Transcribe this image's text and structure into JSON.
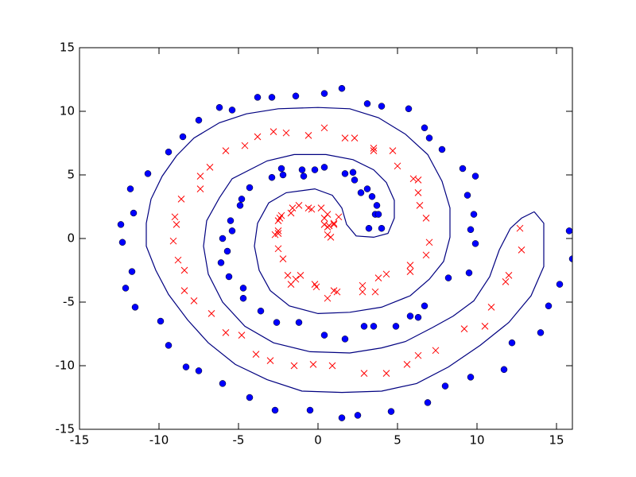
{
  "chart_data": {
    "type": "scatter",
    "xlim": [
      -15,
      16
    ],
    "ylim": [
      -15,
      15
    ],
    "xticks": [
      -15,
      -10,
      -5,
      0,
      5,
      10,
      15
    ],
    "yticks": [
      -15,
      -10,
      -5,
      0,
      5,
      10,
      15
    ],
    "series": [
      {
        "color": "#0000ff",
        "marker": "o",
        "x": [
          1.5,
          0.4,
          -1.4,
          -2.9,
          -3.8,
          -6.2,
          -5.4,
          3.1,
          4.0,
          5.7,
          -7.5,
          6.7,
          7.0,
          -8.5,
          7.8,
          -9.4,
          9.1,
          9.9,
          -10.7,
          -11.8,
          9.4,
          -11.6,
          9.8,
          -12.4,
          9.6,
          -12.3,
          9.9,
          -11.7,
          9.5,
          -12.1,
          -11.5,
          8.2,
          -9.9,
          6.7,
          -9.4,
          5.8,
          6.3,
          4.9,
          -8.3,
          -7.5,
          8.0,
          9.6,
          11.7,
          12.2,
          14.0,
          14.5,
          15.2,
          15.8,
          16.0,
          -6.0,
          -4.3,
          -2.7,
          -0.5,
          1.5,
          2.5,
          4.6,
          6.9,
          0.4,
          1.7,
          2.9,
          3.5,
          -1.2,
          -2.6,
          -3.6,
          -4.7,
          -4.7,
          -5.6,
          -6.1,
          -5.7,
          -6.0,
          -5.4,
          -5.5,
          -4.9,
          -4.8,
          -4.3,
          -2.9,
          -2.3,
          -2.2,
          -1.0,
          -0.9,
          -0.2,
          0.4,
          1.7,
          2.2,
          2.3,
          2.7,
          3.1,
          3.4,
          3.7,
          3.6,
          3.8,
          3.2,
          4.0
        ],
        "y": [
          11.8,
          11.4,
          11.2,
          11.1,
          11.1,
          10.3,
          10.1,
          10.6,
          10.4,
          10.2,
          9.3,
          8.7,
          7.9,
          8.0,
          7.0,
          6.8,
          5.5,
          4.9,
          5.1,
          3.9,
          3.4,
          2.0,
          1.9,
          1.1,
          0.7,
          -0.3,
          -0.4,
          -2.6,
          -2.7,
          -3.9,
          -5.4,
          -3.1,
          -6.5,
          -5.3,
          -8.4,
          -6.1,
          -6.2,
          -6.9,
          -10.1,
          -10.4,
          -11.6,
          -10.9,
          -10.3,
          -8.2,
          -7.4,
          -5.3,
          -3.6,
          0.6,
          -1.6,
          -11.4,
          -12.5,
          -13.5,
          -13.5,
          -14.1,
          -13.9,
          -13.6,
          -12.9,
          -7.6,
          -7.9,
          -6.9,
          -6.9,
          -6.6,
          -6.6,
          -5.7,
          -4.7,
          -3.9,
          -3.0,
          -1.9,
          -1.0,
          0.0,
          0.6,
          1.4,
          2.6,
          3.1,
          4.0,
          4.8,
          5.5,
          5.0,
          5.4,
          4.9,
          5.4,
          5.6,
          5.1,
          5.2,
          4.6,
          3.6,
          3.9,
          3.3,
          2.6,
          1.9,
          1.9,
          0.8,
          0.8
        ]
      },
      {
        "color": "#ff0000",
        "marker": "x",
        "x": [
          0.4,
          -0.6,
          -2.8,
          -2.0,
          -3.8,
          -4.6,
          -5.8,
          -6.8,
          -7.4,
          -7.4,
          -8.6,
          -9.0,
          -8.9,
          -9.1,
          -8.8,
          -8.4,
          -7.8,
          -8.4,
          -6.7,
          -5.8,
          -4.8,
          -3.9,
          -3.0,
          -1.5,
          -0.3,
          0.9,
          2.9,
          4.3,
          5.6,
          6.3,
          7.4,
          9.2,
          10.5,
          10.9,
          11.8,
          12.0,
          12.8,
          12.7,
          1.7,
          2.3,
          3.5,
          3.5,
          4.7,
          5.0,
          6.0,
          6.3,
          6.3,
          6.4,
          6.8,
          7.0,
          6.8,
          5.8,
          5.8,
          4.3,
          3.8,
          2.8,
          2.8,
          3.6,
          1.0,
          1.2,
          0.6,
          -0.2,
          -0.1,
          -1.4,
          -1.7,
          -1.9,
          -1.1,
          -2.2,
          -2.5,
          -2.7,
          -2.5,
          -2.5,
          -2.5,
          -2.3,
          -2.4,
          -1.7,
          -1.6,
          -1.2,
          -0.6,
          -0.4,
          0.2,
          0.4,
          0.6,
          0.6,
          0.4,
          0.6,
          0.8,
          0.7,
          1.0,
          1.3,
          1.0
        ],
        "y": [
          8.7,
          8.1,
          8.4,
          8.3,
          8.0,
          7.3,
          6.9,
          5.6,
          4.9,
          3.9,
          3.1,
          1.7,
          1.1,
          -0.2,
          -1.7,
          -2.5,
          -4.9,
          -4.1,
          -5.9,
          -7.4,
          -7.6,
          -9.1,
          -9.6,
          -10.0,
          -9.9,
          -10.0,
          -10.6,
          -10.6,
          -9.9,
          -9.2,
          -8.8,
          -7.1,
          -6.9,
          -5.4,
          -3.4,
          -2.9,
          -0.9,
          0.8,
          7.9,
          7.9,
          7.1,
          6.9,
          6.9,
          5.7,
          4.7,
          4.6,
          3.6,
          2.6,
          1.6,
          -0.3,
          -1.3,
          -2.1,
          -2.6,
          -2.8,
          -3.1,
          -3.7,
          -4.2,
          -4.2,
          -4.1,
          -4.2,
          -4.7,
          -3.6,
          -3.8,
          -3.2,
          -3.6,
          -2.9,
          -2.9,
          -1.6,
          -0.8,
          0.3,
          0.4,
          0.6,
          1.4,
          1.8,
          1.6,
          2.0,
          2.4,
          2.6,
          2.4,
          2.3,
          2.4,
          1.6,
          1.9,
          0.9,
          1.1,
          0.3,
          0.1,
          1.0,
          1.2,
          1.7,
          1.1
        ]
      },
      {
        "type": "line",
        "color": "#000080",
        "x": [
          13.6,
          14.2,
          14.2,
          13.4,
          12.0,
          10.2,
          8.2,
          6.2,
          4.0,
          1.5,
          -1.0,
          -3.2,
          -5.2,
          -6.9,
          -8.2,
          -9.4,
          -10.2,
          -10.8,
          -10.8,
          -10.5,
          -9.8,
          -8.9,
          -7.8,
          -6.2,
          -4.5,
          -2.5,
          0,
          2.0,
          3.8,
          5.5,
          6.9,
          7.8,
          8.3,
          8.3,
          7.9,
          7.0,
          5.8,
          4.0,
          2.0,
          0,
          -1.8,
          -3.0,
          -3.7,
          -4.0,
          -3.8,
          -3.1,
          -2.0,
          -0.2,
          0.9,
          1.5,
          1.8,
          2.4,
          3.5,
          4.4,
          4.8,
          4.8,
          4.3,
          3.5,
          2.2,
          0.5,
          -1.5,
          -3.2,
          -5.4,
          -6.2,
          -7.0,
          -7.2,
          -6.9,
          -6.0,
          -4.6,
          -2.8,
          -0.5,
          2.0,
          4.0,
          5.5,
          7.2,
          8.5,
          9.8,
          10.8,
          11.4,
          12.1,
          12.8,
          13.6
        ],
        "y": [
          2.1,
          1.2,
          -2.2,
          -4.5,
          -6.6,
          -8.4,
          -10.1,
          -11.4,
          -12.0,
          -12.1,
          -12.0,
          -11.1,
          -9.9,
          -8.2,
          -6.4,
          -4.4,
          -2.5,
          -0.6,
          1.2,
          3.1,
          4.9,
          6.5,
          7.9,
          9.1,
          9.8,
          10.2,
          10.3,
          10.2,
          9.5,
          8.2,
          6.6,
          4.5,
          2.4,
          0.1,
          -1.8,
          -3.2,
          -4.5,
          -5.4,
          -5.8,
          -5.9,
          -5.3,
          -4.1,
          -2.5,
          -0.6,
          1.2,
          2.8,
          3.6,
          3.9,
          3.4,
          2.4,
          1.1,
          0.2,
          0.1,
          0.4,
          1.6,
          3.0,
          4.4,
          5.4,
          6.2,
          6.6,
          6.6,
          6.1,
          4.7,
          3.2,
          1.4,
          -0.6,
          -2.8,
          -5.0,
          -6.9,
          -8.2,
          -8.9,
          -9.0,
          -8.6,
          -8.1,
          -7.0,
          -6.1,
          -4.9,
          -3.0,
          -0.9,
          0.8,
          1.6,
          2.1
        ]
      }
    ]
  }
}
